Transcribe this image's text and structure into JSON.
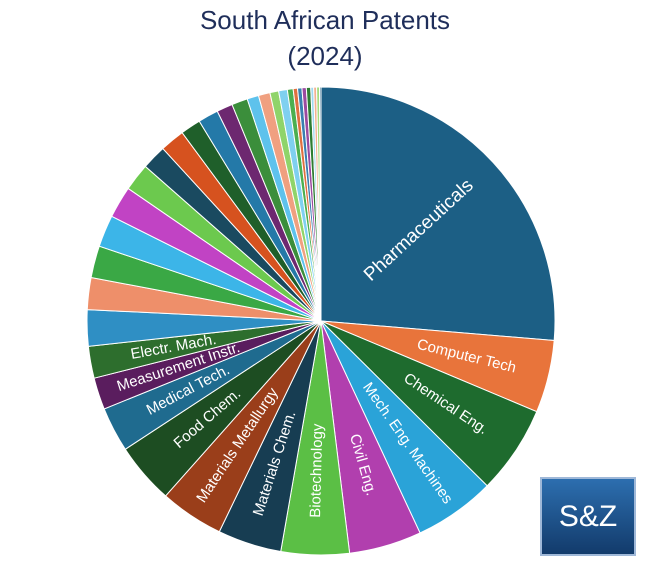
{
  "chart_data": {
    "type": "pie",
    "title": "South African Patents",
    "subtitle": "(2024)",
    "categories": [
      "Pharmaceuticals",
      "Computer Tech",
      "Chemical Eng.",
      "Mech. Eng. Machines",
      "Civil Eng.",
      "Biotechnology",
      "Materials Chem.",
      "Materials Metallurgy",
      "Food Chem.",
      "Medical Tech.",
      "Measurement Instr.",
      "Electr. Mach.",
      null,
      null,
      null,
      null,
      null,
      null,
      null,
      null,
      null,
      null,
      null,
      null,
      null,
      null,
      null,
      null,
      null,
      null,
      null,
      null,
      null,
      null,
      null,
      null,
      null
    ],
    "values": [
      26.3,
      5.0,
      6.1,
      5.6,
      5.0,
      4.7,
      4.4,
      4.4,
      4.2,
      3.1,
      2.2,
      2.2,
      2.5,
      2.2,
      2.2,
      2.2,
      2.2,
      1.9,
      1.7,
      1.7,
      1.4,
      1.4,
      1.1,
      1.1,
      0.8,
      0.8,
      0.6,
      0.6,
      0.4,
      0.3,
      0.3,
      0.3,
      0.3,
      0.2,
      0.2,
      0.2,
      0.1
    ],
    "colors": [
      "#1c5f85",
      "#e8743b",
      "#1e6b2e",
      "#2aa3d8",
      "#b13fae",
      "#5bbf45",
      "#173d52",
      "#9a3e1a",
      "#1d4d22",
      "#1f6b8f",
      "#5a1d5e",
      "#2d6e2d",
      "#2f8fc4",
      "#ee8f6a",
      "#3aa845",
      "#3cb5e8",
      "#c143c4",
      "#6cc94e",
      "#1a4a60",
      "#d6521f",
      "#1f5f2a",
      "#2479a8",
      "#6d2870",
      "#3b8e3b",
      "#5ec2ec",
      "#f0a080",
      "#8fd46a",
      "#7fd0f0",
      "#4caf50",
      "#e07040",
      "#3a7fb0",
      "#9b4aa0",
      "#2e7d32",
      "#a0d8f0",
      "#f4b090",
      "#a5dc80",
      "#1c5f85"
    ]
  },
  "logo": "S&Z"
}
